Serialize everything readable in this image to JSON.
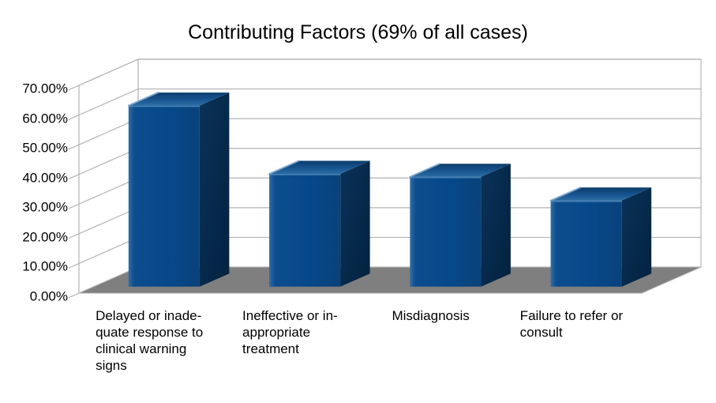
{
  "chart_title": "Contributing Factors (69% of all cases)",
  "chart_data": {
    "type": "bar",
    "projection": "3d",
    "title": "Contributing Factors (69% of all cases)",
    "categories": [
      "Delayed or inadequate response to clinical warning signs",
      "Ineffective or inappropriate treatment",
      "Misdiagnosis",
      "Failure to refer or consult"
    ],
    "category_wrapped_lines": [
      [
        "Delayed or inade-",
        "quate response to",
        "clinical warning",
        "signs"
      ],
      [
        "Ineffective or in-",
        "appropriate",
        "treatment"
      ],
      [
        "Misdiagnosis"
      ],
      [
        "Failure to refer or",
        "consult"
      ]
    ],
    "values": [
      61,
      38,
      37,
      29
    ],
    "unit": "%",
    "xlabel": "",
    "ylabel": "",
    "ylim": [
      0,
      70
    ],
    "ytick_step": 10,
    "ytick_labels": [
      "0.00%",
      "10.00%",
      "20.00%",
      "30.00%",
      "40.00%",
      "50.00%",
      "60.00%",
      "70.00%"
    ],
    "grid": "on",
    "legend": "none",
    "colors": {
      "bar_front": "#05498b",
      "bar_front_highlight": "#2f6da5",
      "bar_side_dark": "#03223f",
      "bar_side": "#0a3258",
      "bar_top_light": "#2e6ca5",
      "bar_top_dark": "#0c3c6b",
      "floor": "#7f7f7f",
      "wall": "#ffffff",
      "gridline": "#b3b3b3",
      "text": "#000000",
      "background": "#ffffff"
    }
  }
}
